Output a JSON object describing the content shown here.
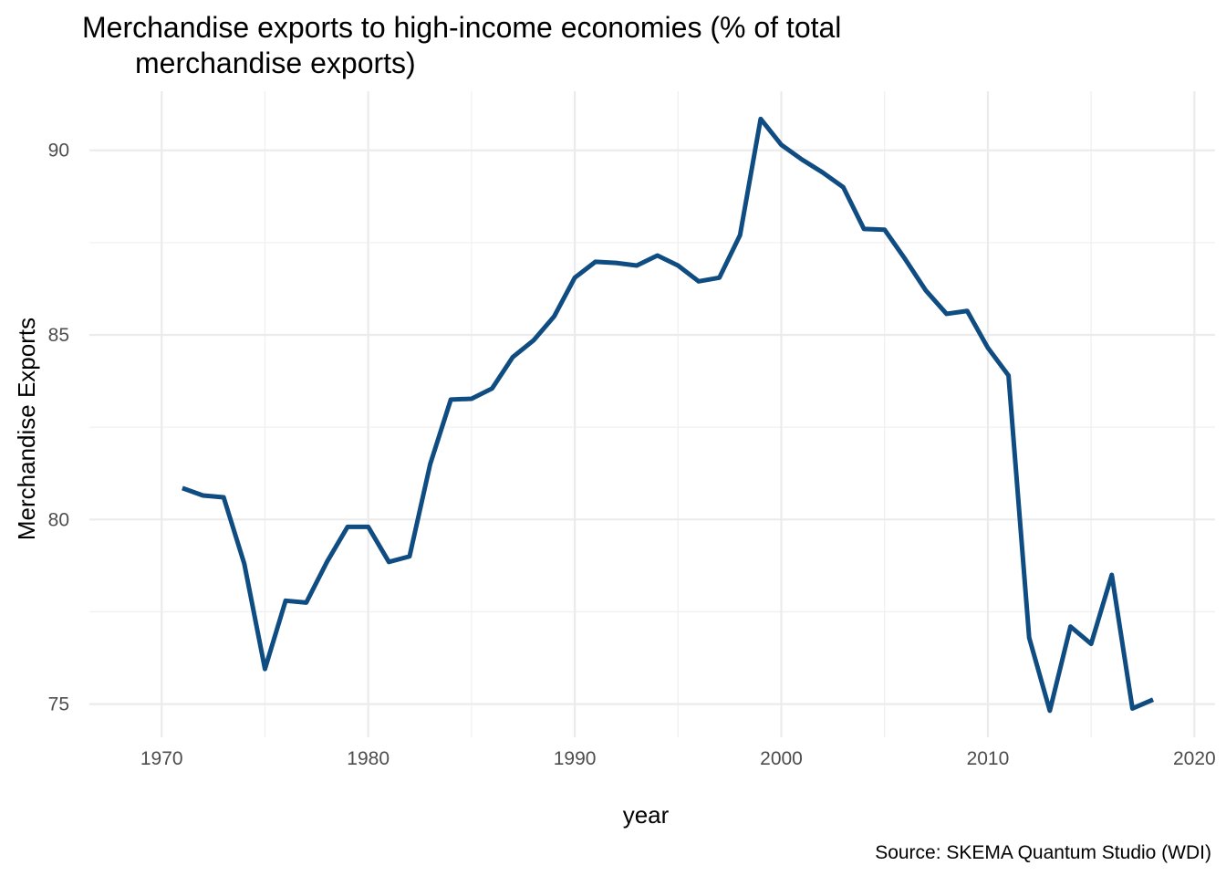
{
  "chart_data": {
    "type": "line",
    "title_lines": [
      "Merchandise exports to high-income economies (% of total",
      "merchandise exports)"
    ],
    "xlabel": "year",
    "ylabel": "Merchandise Exports",
    "caption": "Source: SKEMA Quantum Studio (WDI)",
    "xlim": [
      1966.5,
      2021
    ],
    "ylim": [
      74.1,
      91.6
    ],
    "x_ticks": [
      1970,
      1980,
      1990,
      2000,
      2010,
      2020
    ],
    "x_tick_labels": [
      "1970",
      "1980",
      "1990",
      "2000",
      "2010",
      "2020"
    ],
    "y_ticks": [
      75,
      80,
      85,
      90
    ],
    "y_tick_labels": [
      "75",
      "80",
      "85",
      "90"
    ],
    "grid": true,
    "line_color": "#0f4c81",
    "series": [
      {
        "x": [
          1971,
          1972,
          1973,
          1974,
          1975,
          1976,
          1977,
          1978,
          1979,
          1980,
          1981,
          1982,
          1983,
          1984,
          1985,
          1986,
          1987,
          1988,
          1989,
          1990,
          1991,
          1992,
          1993,
          1994,
          1995,
          1996,
          1997,
          1998,
          1999,
          2000,
          2001,
          2002,
          2003,
          2004,
          2005,
          2006,
          2007,
          2008,
          2009,
          2010,
          2011,
          2012,
          2013,
          2014,
          2015,
          2016,
          2017,
          2018
        ],
        "values": [
          80.85,
          80.65,
          80.6,
          78.8,
          75.95,
          77.8,
          77.75,
          78.85,
          79.8,
          79.8,
          78.85,
          79.0,
          81.5,
          83.25,
          83.27,
          83.55,
          84.4,
          84.85,
          85.5,
          86.55,
          86.98,
          86.95,
          86.88,
          87.15,
          86.88,
          86.45,
          86.55,
          87.7,
          90.85,
          90.15,
          89.75,
          89.4,
          89.0,
          87.87,
          87.85,
          87.05,
          86.2,
          85.57,
          85.65,
          84.65,
          83.9,
          76.8,
          74.82,
          77.1,
          76.63,
          78.5,
          74.88,
          75.12
        ]
      }
    ]
  }
}
